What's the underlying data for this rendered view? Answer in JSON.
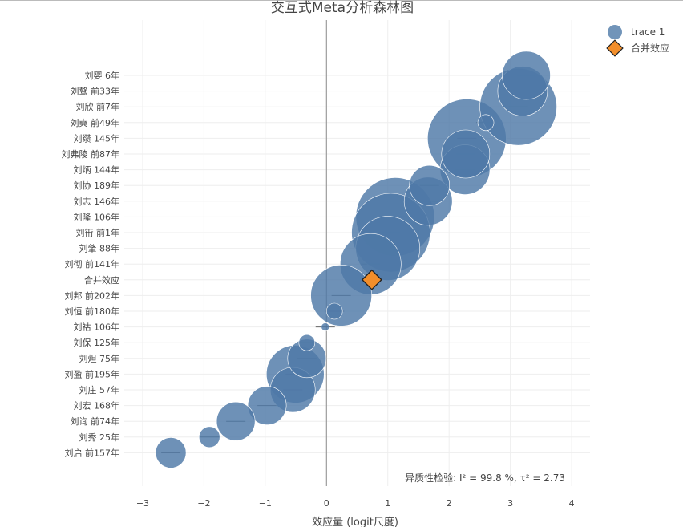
{
  "chart_data": {
    "type": "scatter",
    "title": "交互式Meta分析森林图",
    "xlabel": "效应量 (logit尺度)",
    "ylabel": "",
    "xlim": [
      -3.3,
      4.3
    ],
    "xticks": [
      -3,
      -2,
      -1,
      0,
      1,
      2,
      3,
      4
    ],
    "xtick_labels": [
      "−3",
      "−2",
      "−1",
      "0",
      "1",
      "2",
      "3",
      "4"
    ],
    "grid": true,
    "legend_position": "top-right",
    "legend": [
      {
        "label": "trace 1",
        "marker": "circle",
        "color": "#4e79a7"
      },
      {
        "label": "合并效应",
        "marker": "diamond",
        "color": "#f28e2b"
      }
    ],
    "rows": [
      "刘婴 6年",
      "刘骜 前33年",
      "刘欣 前7年",
      "刘奭 前49年",
      "刘缵 145年",
      "刘弗陵 前87年",
      "刘炳 144年",
      "刘协 189年",
      "刘志 146年",
      "刘隆 106年",
      "刘衎 前1年",
      "刘肇 88年",
      "刘彻 前141年",
      "合并效应",
      "刘邦 前202年",
      "刘恒 前180年",
      "刘祜 106年",
      "刘保 125年",
      "刘炟 75年",
      "刘盈 前195年",
      "刘庄 57年",
      "刘宏 168年",
      "刘询 前74年",
      "刘秀 25年",
      "刘启 前157年"
    ],
    "points": [
      {
        "label": "刘婴 6年",
        "x": 3.26,
        "size": 60
      },
      {
        "label": "刘骜 前33年",
        "x": 3.2,
        "size": 62
      },
      {
        "label": "刘欣 前7年",
        "x": 3.13,
        "size": 96
      },
      {
        "label": "刘奭 前49年",
        "x": 2.6,
        "size": 20
      },
      {
        "label": "刘缵 145年",
        "x": 2.29,
        "size": 98
      },
      {
        "label": "刘弗陵 前87年",
        "x": 2.27,
        "size": 60
      },
      {
        "label": "刘炳 144年",
        "x": 2.26,
        "size": 62
      },
      {
        "label": "刘协 189年",
        "x": 1.68,
        "size": 50
      },
      {
        "label": "刘志 146年",
        "x": 1.66,
        "size": 60
      },
      {
        "label": "刘隆 106年",
        "x": 1.12,
        "size": 98
      },
      {
        "label": "刘衎 前1年",
        "x": 1.05,
        "size": 98
      },
      {
        "label": "刘肇 88年",
        "x": 1.0,
        "size": 80
      },
      {
        "label": "刘彻 前141年",
        "x": 0.72,
        "size": 76
      },
      {
        "label": "刘邦 前202年",
        "x": 0.24,
        "size": 76
      },
      {
        "label": "刘恒 前180年",
        "x": 0.13,
        "size": 20
      },
      {
        "label": "刘祜 106年",
        "x": -0.02,
        "size": 10
      },
      {
        "label": "刘保 125年",
        "x": -0.32,
        "size": 20
      },
      {
        "label": "刘炟 75年",
        "x": -0.32,
        "size": 48
      },
      {
        "label": "刘盈 前195年",
        "x": -0.51,
        "size": 72
      },
      {
        "label": "刘庄 57年",
        "x": -0.55,
        "size": 56
      },
      {
        "label": "刘宏 168年",
        "x": -0.97,
        "size": 48
      },
      {
        "label": "刘询 前74年",
        "x": -1.48,
        "size": 48
      },
      {
        "label": "刘秀 25年",
        "x": -1.91,
        "size": 26
      },
      {
        "label": "刘启 前157年",
        "x": -2.54,
        "size": 38
      }
    ],
    "pooled": {
      "label": "合并效应",
      "x": 0.74
    },
    "point_color": "#4e79a7",
    "pooled_color": "#f28e2b",
    "annotation": "异质性检验: I² = 99.8 %, τ² = 2.73"
  }
}
